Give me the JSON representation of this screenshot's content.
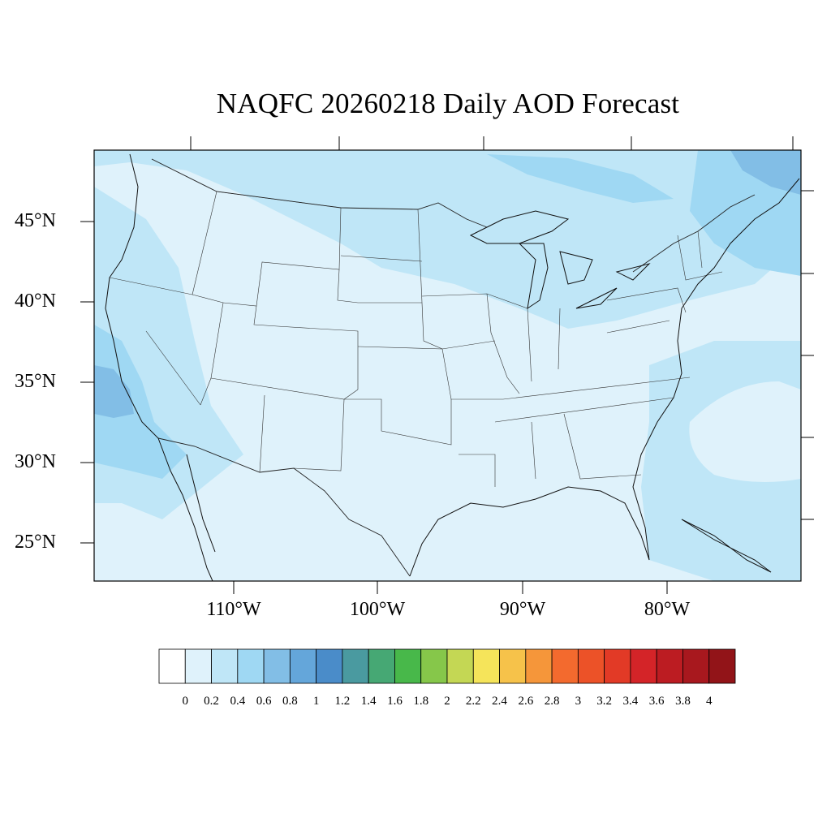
{
  "title": "NAQFC 20260218 Daily AOD Forecast",
  "lat_labels": [
    "45°N",
    "40°N",
    "35°N",
    "30°N",
    "25°N"
  ],
  "lon_labels": [
    "110°W",
    "100°W",
    "90°W",
    "80°W"
  ],
  "colorbar": {
    "labels": [
      "0",
      "0.2",
      "0.4",
      "0.6",
      "0.8",
      "1",
      "1.2",
      "1.4",
      "1.6",
      "1.8",
      "2",
      "2.2",
      "2.4",
      "2.6",
      "2.8",
      "3",
      "3.2",
      "3.4",
      "3.6",
      "3.8",
      "4"
    ],
    "colors": [
      "#ffffff",
      "#dff2fb",
      "#bfe6f7",
      "#9fd8f3",
      "#82bee6",
      "#64a6da",
      "#4a8cc9",
      "#4a9aa0",
      "#46a874",
      "#48b84a",
      "#86c74a",
      "#c4d754",
      "#f5e45a",
      "#f6c24a",
      "#f5963a",
      "#f36a2e",
      "#ec5228",
      "#e23a26",
      "#d42428",
      "#bc1c22",
      "#a8181e",
      "#921418"
    ]
  },
  "map": {
    "colors": {
      "background": "#dff2fb",
      "light_blue": "#bfe6f7",
      "mid_blue": "#9fd8f3",
      "deep_blue": "#82bee6",
      "border": "#222222"
    }
  }
}
